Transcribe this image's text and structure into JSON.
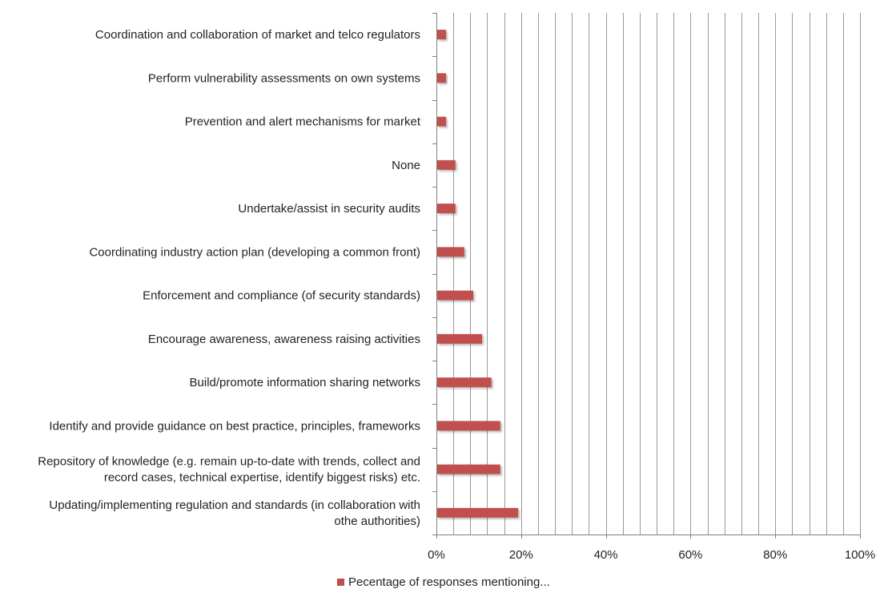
{
  "chart_data": {
    "type": "bar",
    "orientation": "horizontal",
    "title": "",
    "xlabel": "",
    "ylabel": "",
    "xlim": [
      0,
      100
    ],
    "x_tick_values": [
      0,
      20,
      40,
      60,
      80,
      100
    ],
    "x_tick_labels": [
      "0%",
      "20%",
      "40%",
      "60%",
      "80%",
      "100%"
    ],
    "grid": true,
    "legend_position": "bottom",
    "categories": [
      [
        "Coordination and collaboration of market and telco regulators"
      ],
      [
        "Perform vulnerability assessments on own systems"
      ],
      [
        "Prevention and alert mechanisms for market"
      ],
      [
        "None"
      ],
      [
        "Undertake/assist in security audits"
      ],
      [
        "Coordinating industry action plan (developing a common front)"
      ],
      [
        "Enforcement and compliance (of security standards)"
      ],
      [
        "Encourage awareness, awareness raising activities"
      ],
      [
        "Build/promote information sharing networks"
      ],
      [
        "Identify and  provide guidance on best practice, principles, frameworks"
      ],
      [
        "Repository of knowledge (e.g. remain up-to-date with trends, collect and",
        "record cases, technical expertise, identify biggest risks) etc."
      ],
      [
        "Updating/implementing regulation and standards (in collaboration with",
        "othe authorities)"
      ]
    ],
    "series": [
      {
        "name": "Pecentage of responses mentioning...",
        "color": "#c0504d",
        "values": [
          2.1,
          2.1,
          2.1,
          4.3,
          4.3,
          6.4,
          8.5,
          10.6,
          12.8,
          14.9,
          14.9,
          19.1
        ]
      }
    ]
  }
}
